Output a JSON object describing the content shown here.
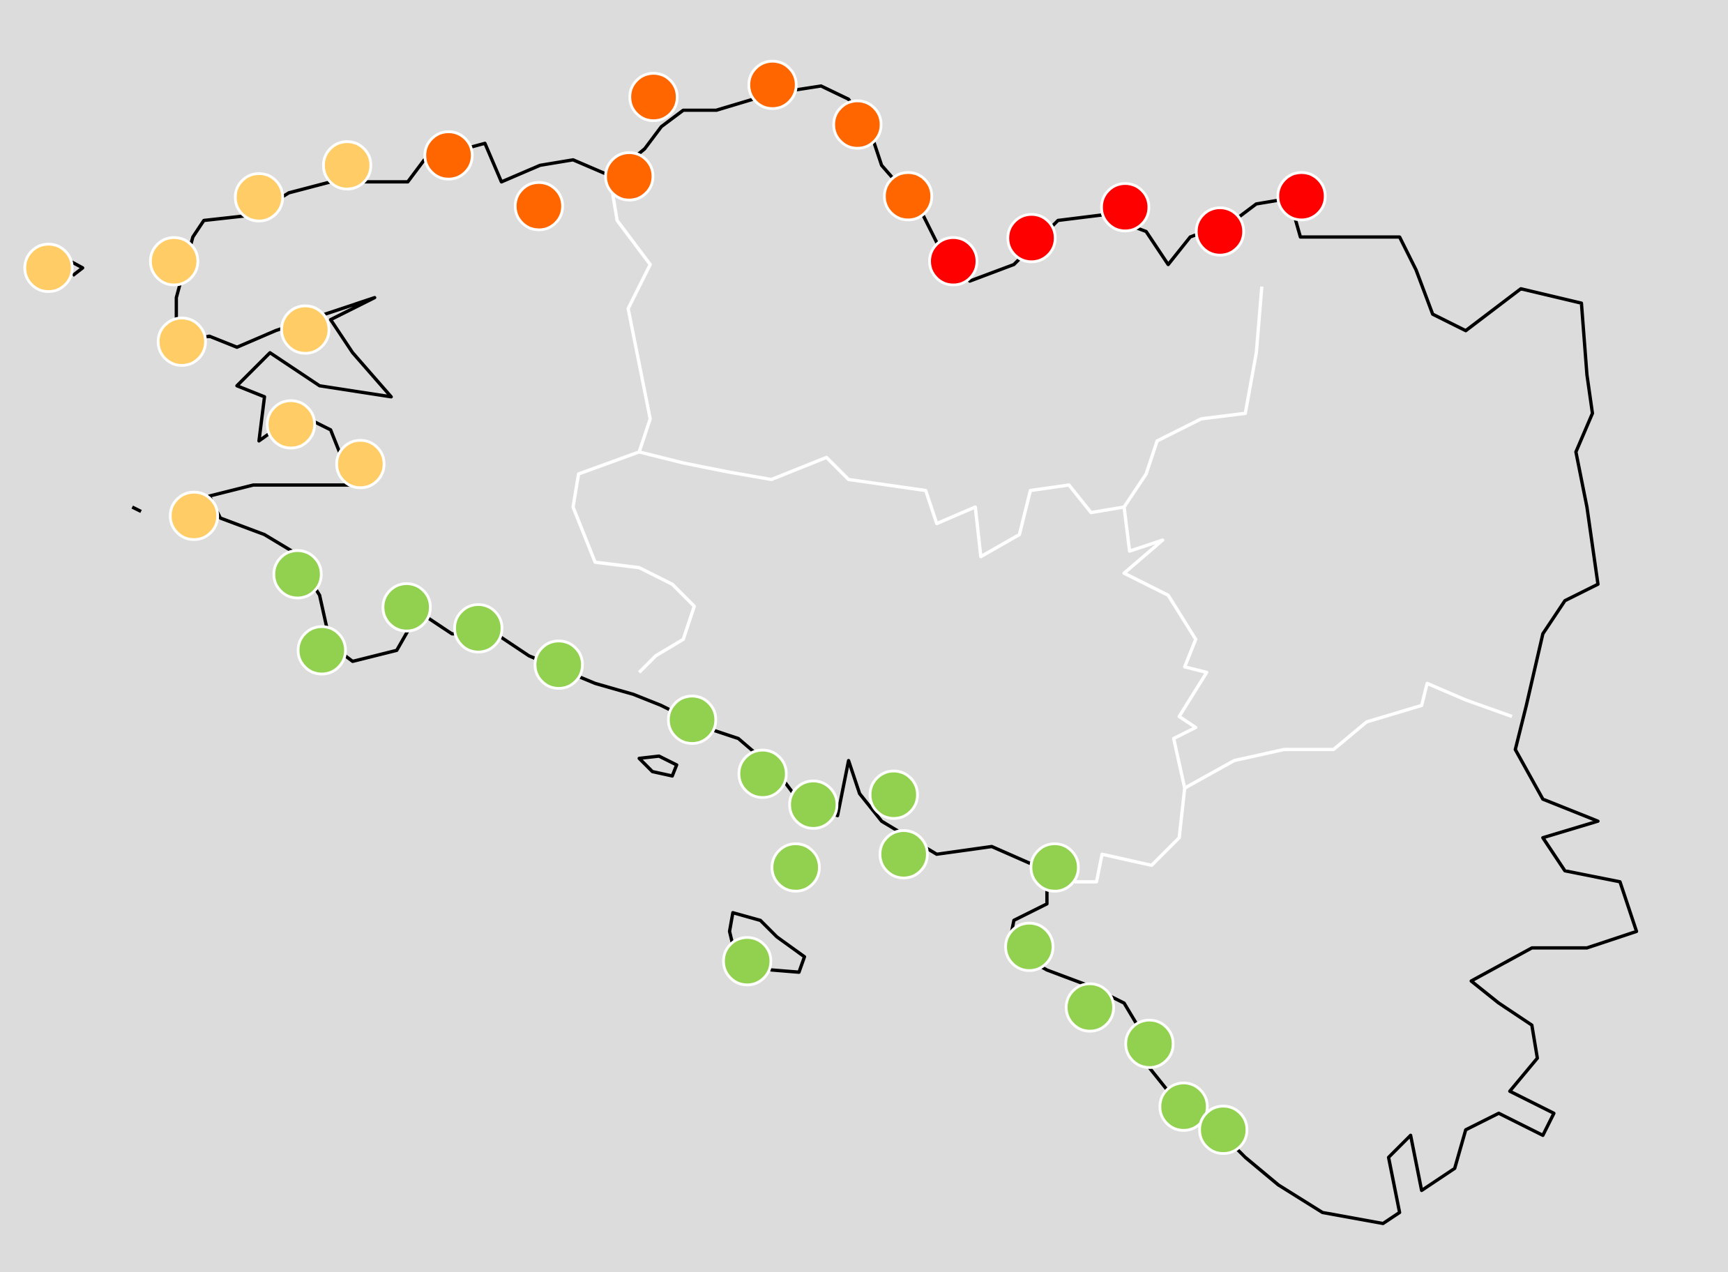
{
  "map": {
    "background": "#dcdcdc",
    "coastline_color": "#000000",
    "border_color": "#ffffff",
    "marker_stroke": "#ffffff",
    "levels": [
      {
        "key": "light-orange",
        "color": "#ffcc66"
      },
      {
        "key": "orange",
        "color": "#ff6600"
      },
      {
        "key": "red",
        "color": "#ff0000"
      },
      {
        "key": "green",
        "color": "#92d050"
      }
    ]
  }
}
